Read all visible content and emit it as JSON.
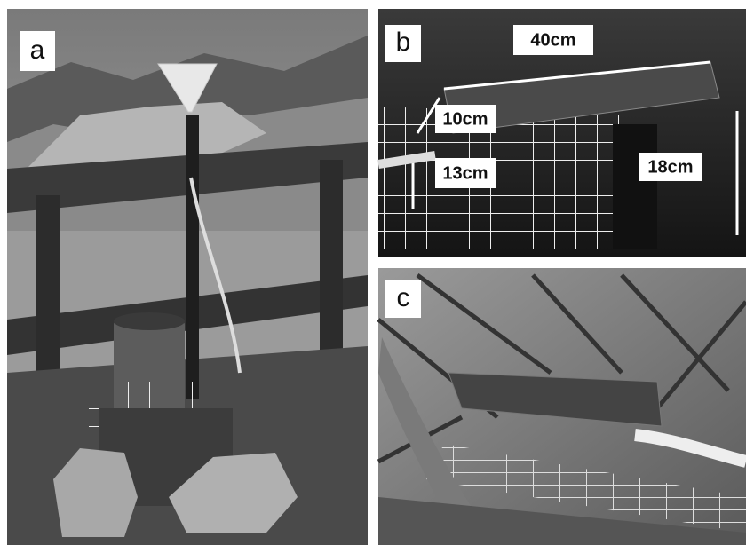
{
  "panels": [
    {
      "label": "a"
    },
    {
      "label": "b",
      "annotations": [
        "40cm",
        "10cm",
        "13cm",
        "18cm"
      ]
    },
    {
      "label": "c"
    }
  ]
}
